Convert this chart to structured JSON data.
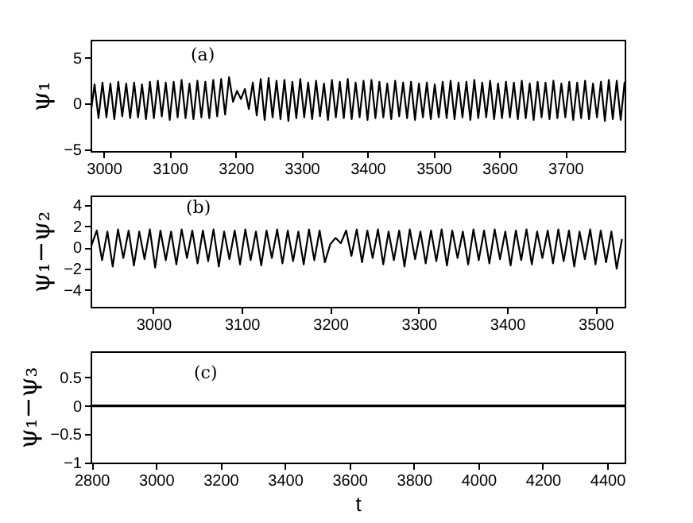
{
  "chart_data": [
    {
      "type": "line",
      "ylabel": "ψ₁",
      "annotations": [
        "(a)"
      ],
      "x": [
        2980,
        2986,
        2992,
        2998,
        3004,
        3010,
        3016,
        3022,
        3028,
        3034,
        3040,
        3046,
        3052,
        3058,
        3064,
        3070,
        3076,
        3082,
        3088,
        3094,
        3100,
        3106,
        3112,
        3118,
        3124,
        3130,
        3136,
        3142,
        3148,
        3154,
        3160,
        3166,
        3172,
        3178,
        3184,
        3190,
        3196,
        3202,
        3208,
        3214,
        3220,
        3226,
        3232,
        3238,
        3244,
        3250,
        3256,
        3262,
        3268,
        3274,
        3280,
        3286,
        3292,
        3298,
        3304,
        3310,
        3316,
        3322,
        3328,
        3334,
        3340,
        3346,
        3352,
        3358,
        3364,
        3370,
        3376,
        3382,
        3388,
        3394,
        3400,
        3406,
        3412,
        3418,
        3424,
        3430,
        3436,
        3442,
        3448,
        3454,
        3460,
        3466,
        3472,
        3478,
        3484,
        3490,
        3496,
        3502,
        3508,
        3514,
        3520,
        3526,
        3532,
        3538,
        3544,
        3550,
        3556,
        3562,
        3568,
        3574,
        3580,
        3586,
        3592,
        3598,
        3604,
        3610,
        3616,
        3622,
        3628,
        3634,
        3640,
        3646,
        3652,
        3658,
        3664,
        3670,
        3676,
        3682,
        3688,
        3694,
        3700,
        3706,
        3712,
        3718,
        3724,
        3730,
        3736,
        3742,
        3748,
        3754,
        3760,
        3766,
        3772,
        3778,
        3784,
        3790
      ],
      "series": [
        {
          "color": "#000000",
          "values": [
            -1.2,
            2.1,
            -1.6,
            2.3,
            -1.5,
            2.2,
            -1.7,
            2.4,
            -1.4,
            2.2,
            -1.6,
            2.3,
            -1.5,
            2.1,
            -1.7,
            2.4,
            -1.6,
            2.5,
            -1.4,
            2.3,
            -1.8,
            2.4,
            -1.5,
            2.6,
            -1.6,
            2.2,
            -1.7,
            2.5,
            -1.5,
            2.4,
            -1.6,
            2.6,
            -1.4,
            2.7,
            -1.2,
            2.9,
            0.2,
            1.4,
            0.5,
            1.6,
            -0.6,
            2.3,
            -1.3,
            2.7,
            -1.8,
            2.8,
            -1.5,
            2.5,
            -1.7,
            2.6,
            -1.9,
            2.4,
            -1.6,
            2.7,
            -1.5,
            2.3,
            -1.7,
            2.5,
            -1.4,
            2.2,
            -1.8,
            2.6,
            -1.5,
            2.4,
            -1.6,
            2.7,
            -1.7,
            2.3,
            -1.5,
            2.5,
            -1.8,
            2.6,
            -1.6,
            2.4,
            -1.5,
            2.2,
            -1.7,
            2.5,
            -1.4,
            2.3,
            -1.6,
            2.4,
            -1.8,
            2.2,
            -1.5,
            2.3,
            -1.7,
            2.1,
            -1.5,
            2.4,
            -1.6,
            2.5,
            -1.7,
            2.3,
            -1.5,
            2.4,
            -1.8,
            2.6,
            -1.6,
            2.3,
            -1.5,
            2.5,
            -1.7,
            2.2,
            -1.6,
            2.4,
            -1.5,
            2.3,
            -1.7,
            2.5,
            -1.6,
            2.2,
            -1.8,
            2.4,
            -1.5,
            2.3,
            -1.7,
            2.5,
            -1.6,
            2.2,
            -1.5,
            2.4,
            -1.8,
            2.3,
            -1.6,
            2.5,
            -1.7,
            2.2,
            -1.5,
            2.4,
            -1.9,
            2.6,
            -1.7,
            2.5,
            -1.8,
            2.4
          ]
        }
      ],
      "xlim": [
        2980,
        3790
      ],
      "xticks": [
        3000,
        3100,
        3200,
        3300,
        3400,
        3500,
        3600,
        3700
      ],
      "ylim": [
        -5.2,
        7
      ],
      "yticks": [
        -5,
        0,
        5
      ]
    },
    {
      "type": "line",
      "ylabel": "ψ₁−ψ₂",
      "annotations": [
        "(b)"
      ],
      "x": [
        2930,
        2936,
        2942,
        2948,
        2954,
        2960,
        2966,
        2972,
        2978,
        2984,
        2990,
        2996,
        3002,
        3008,
        3014,
        3020,
        3026,
        3032,
        3038,
        3044,
        3050,
        3056,
        3062,
        3068,
        3074,
        3080,
        3086,
        3092,
        3098,
        3104,
        3110,
        3116,
        3122,
        3128,
        3134,
        3140,
        3146,
        3152,
        3158,
        3164,
        3170,
        3176,
        3182,
        3188,
        3194,
        3200,
        3206,
        3212,
        3218,
        3224,
        3230,
        3236,
        3242,
        3248,
        3254,
        3260,
        3266,
        3272,
        3278,
        3284,
        3290,
        3296,
        3302,
        3308,
        3314,
        3320,
        3326,
        3332,
        3338,
        3344,
        3350,
        3356,
        3362,
        3368,
        3374,
        3380,
        3386,
        3392,
        3398,
        3404,
        3410,
        3416,
        3422,
        3428,
        3434,
        3440,
        3446,
        3452,
        3458,
        3464,
        3470,
        3476,
        3482,
        3488,
        3494,
        3500,
        3506,
        3512,
        3518,
        3524,
        3530
      ],
      "series": [
        {
          "color": "#000000",
          "values": [
            0.2,
            1.6,
            -1.2,
            1.5,
            -1.8,
            1.7,
            -1.0,
            1.6,
            -1.7,
            1.5,
            -1.1,
            1.7,
            -1.9,
            1.6,
            -1.2,
            1.5,
            -1.6,
            1.7,
            -1.0,
            1.6,
            -1.5,
            1.6,
            -1.3,
            1.7,
            -1.8,
            1.5,
            -1.1,
            1.6,
            -1.6,
            1.7,
            -1.2,
            1.5,
            -1.7,
            1.6,
            -1.0,
            1.7,
            -1.5,
            1.6,
            -1.3,
            1.5,
            -1.6,
            1.7,
            -1.2,
            1.6,
            -1.4,
            0.3,
            0.9,
            0.4,
            1.6,
            -0.8,
            1.7,
            -1.4,
            1.6,
            -1.0,
            1.7,
            -1.6,
            1.5,
            -1.2,
            1.6,
            -1.8,
            1.7,
            -1.1,
            1.5,
            -1.5,
            1.6,
            -1.3,
            1.7,
            -1.7,
            1.6,
            -1.0,
            1.5,
            -1.6,
            1.7,
            -1.2,
            1.6,
            -1.5,
            1.7,
            -1.1,
            1.5,
            -1.7,
            1.6,
            -1.2,
            1.7,
            -1.6,
            1.5,
            -1.0,
            1.6,
            -1.5,
            1.7,
            -1.3,
            1.6,
            -1.8,
            1.5,
            -1.1,
            1.7,
            -1.6,
            1.6,
            -1.4,
            1.5,
            -2.0,
            0.8
          ]
        }
      ],
      "xlim": [
        2929,
        3533
      ],
      "xticks": [
        3000,
        3100,
        3200,
        3300,
        3400,
        3500
      ],
      "ylim": [
        -5.6,
        4.9
      ],
      "yticks": [
        -4,
        -2,
        0,
        2,
        4
      ]
    },
    {
      "type": "line",
      "xlabel": "t",
      "ylabel": "ψ₁−ψ₃",
      "annotations": [
        "(c)"
      ],
      "x": [
        2797,
        4454
      ],
      "series": [
        {
          "color": "#000000",
          "values": [
            0,
            0
          ]
        }
      ],
      "xlim": [
        2797,
        4454
      ],
      "xticks": [
        2800,
        3000,
        3200,
        3400,
        3600,
        3800,
        4000,
        4200,
        4400
      ],
      "ylim": [
        -1,
        0.96
      ],
      "yticks": [
        -1,
        -0.5,
        0,
        0.5
      ]
    }
  ]
}
